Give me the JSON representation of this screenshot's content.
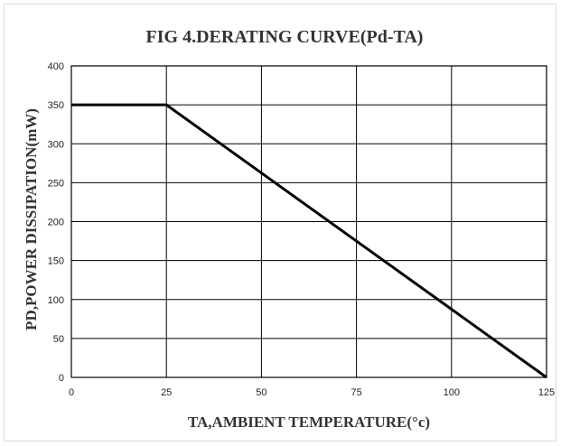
{
  "chart_data": {
    "type": "line",
    "title": "FIG 4.DERATING CURVE(Pd-TA)",
    "xlabel": "TA,AMBIENT TEMPERATURE(°c)",
    "ylabel": "PD,POWER DISSIPATION(mW)",
    "xlim": [
      0,
      125
    ],
    "ylim": [
      0,
      400
    ],
    "x_ticks": [
      0,
      25,
      50,
      75,
      100,
      125
    ],
    "y_ticks": [
      0,
      50,
      100,
      150,
      200,
      250,
      300,
      350,
      400
    ],
    "grid": true,
    "series": [
      {
        "x": [
          0,
          25,
          125
        ],
        "y": [
          350,
          350,
          0
        ],
        "color": "#000000"
      }
    ]
  }
}
